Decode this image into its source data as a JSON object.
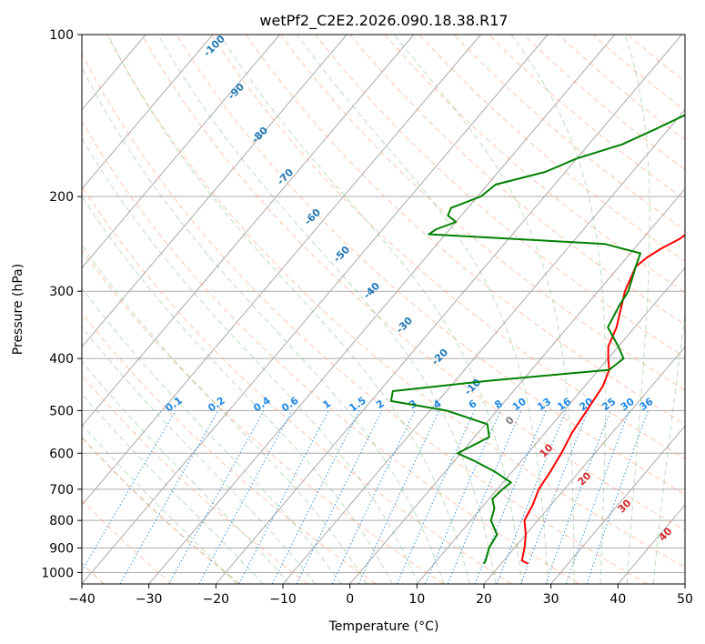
{
  "chart_data": {
    "type": "skew-t",
    "title": "wetPf2_C2E2.2026.090.18.38.R17",
    "xlabel": "Temperature (°C)",
    "ylabel": "Pressure (hPa)",
    "xlim": [
      -40,
      50
    ],
    "ylim": [
      1050,
      100
    ],
    "xticks": [
      -40,
      -30,
      -20,
      -10,
      0,
      10,
      20,
      30,
      40,
      50
    ],
    "yticks": [
      1000,
      900,
      800,
      700,
      600,
      500,
      400,
      300,
      200,
      100
    ],
    "colors": {
      "temperature": "#ff0000",
      "dewpoint": "#008000",
      "isotherm": "#aaaaaa",
      "dry_adiabat": "#ffa07a",
      "moist_adiabat": "#6ab86a",
      "mixing_ratio": "#1e88e5",
      "moist_label": "#1f77b4",
      "dry_label": "#d62728",
      "special": "#d2b48c"
    },
    "series": [
      {
        "name": "Temperature",
        "p": [
          963,
          950,
          900,
          850,
          800,
          750,
          700,
          650,
          600,
          550,
          500,
          450,
          420,
          400,
          380,
          350,
          300,
          270,
          260,
          250,
          240,
          230,
          220,
          210,
          200,
          180,
          160,
          140,
          120,
          110,
          100
        ],
        "t": [
          24,
          22.7,
          21.5,
          20,
          18,
          17.3,
          16.2,
          15.7,
          15,
          14,
          13.4,
          12.7,
          11.6,
          10,
          8.5,
          7.3,
          4,
          2.5,
          3,
          4,
          5.5,
          6.3,
          5.7,
          5.3,
          5,
          4.5,
          4,
          4,
          4,
          4.7,
          6
        ]
      },
      {
        "name": "Dewpoint",
        "p": [
          963,
          950,
          900,
          850,
          800,
          760,
          730,
          700,
          680,
          650,
          620,
          600,
          560,
          530,
          500,
          480,
          460,
          440,
          420,
          400,
          380,
          350,
          320,
          300,
          270,
          255,
          245,
          235,
          230,
          223,
          217,
          210,
          200,
          190,
          180,
          170,
          160,
          150,
          140,
          120,
          110,
          100
        ],
        "td": [
          17.4,
          17.3,
          16.2,
          15.7,
          13,
          12,
          10.5,
          10.8,
          11.2,
          7.5,
          3,
          -0.5,
          2.2,
          0.3,
          -7.5,
          -17,
          -18,
          -5,
          11.6,
          12.3,
          10,
          6,
          5,
          4.5,
          2.5,
          1.5,
          -5,
          -32.5,
          -32,
          -30,
          -32,
          -32.5,
          -29.5,
          -28.8,
          -23,
          -20,
          -15,
          -12,
          -9,
          -8,
          -4,
          -1
        ]
      }
    ],
    "annotations": {
      "dry_adiabat_labels": [
        "0",
        "10",
        "20",
        "30",
        "40"
      ],
      "moist_adiabat_labels": [
        "-100",
        "-90",
        "-80",
        "-70",
        "-60",
        "-50",
        "-40",
        "-30",
        "-20",
        "-10"
      ],
      "mixing_ratio_labels": [
        "0.1",
        "0.2",
        "0.4",
        "0.6",
        "1",
        "1.5",
        "2",
        "3",
        "4",
        "6",
        "8",
        "10",
        "13",
        "16",
        "20",
        "25",
        "30",
        "36"
      ]
    }
  }
}
